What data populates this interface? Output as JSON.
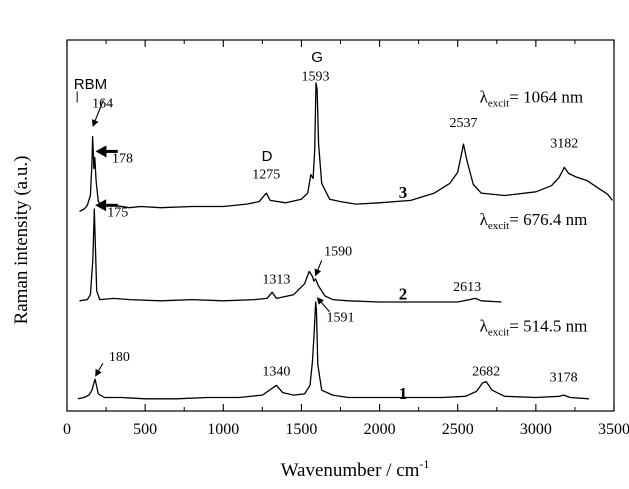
{
  "chart_data": {
    "type": "line",
    "xlabel_main": "Wavenumber / cm",
    "xlabel_sup": "-1",
    "ylabel": "Raman intensity (a.u.)",
    "xlim": [
      0,
      3500
    ],
    "xticks": [
      0,
      500,
      1000,
      1500,
      2000,
      2500,
      3000,
      3500
    ],
    "xtick_labels": [
      "0",
      "500",
      "1000",
      "1500",
      "2000",
      "2500",
      "3000",
      "3500"
    ],
    "y_ticks": "none",
    "band_labels": [
      {
        "text": "RBM",
        "x": 150,
        "y": 25.5
      },
      {
        "text": "D",
        "x": 1280,
        "y": 19.6
      },
      {
        "text": "G",
        "x": 1600,
        "y": 27.7
      }
    ],
    "series": [
      {
        "number": "3",
        "number_pos": {
          "x": 2150,
          "y": 16.6
        },
        "excitation": {
          "lambda": "λ",
          "sub": "excit",
          "value": "= 1064 nm",
          "x": 2640,
          "y": 24.4
        },
        "points": [
          [
            80,
            15.5
          ],
          [
            110,
            15.7
          ],
          [
            130,
            16.0
          ],
          [
            150,
            16.8
          ],
          [
            160,
            19.5
          ],
          [
            164,
            21.6
          ],
          [
            168,
            20.3
          ],
          [
            172,
            19.0
          ],
          [
            178,
            19.9
          ],
          [
            186,
            18.0
          ],
          [
            200,
            16.3
          ],
          [
            230,
            15.9
          ],
          [
            300,
            16.0
          ],
          [
            400,
            15.8
          ],
          [
            470,
            15.9
          ],
          [
            600,
            15.8
          ],
          [
            800,
            15.9
          ],
          [
            1000,
            15.9
          ],
          [
            1150,
            16.1
          ],
          [
            1230,
            16.3
          ],
          [
            1275,
            17.0
          ],
          [
            1300,
            16.4
          ],
          [
            1400,
            16.2
          ],
          [
            1500,
            16.5
          ],
          [
            1540,
            17.0
          ],
          [
            1560,
            18.5
          ],
          [
            1575,
            18.2
          ],
          [
            1585,
            20.5
          ],
          [
            1593,
            26.0
          ],
          [
            1600,
            25.5
          ],
          [
            1610,
            21.0
          ],
          [
            1630,
            17.8
          ],
          [
            1680,
            16.5
          ],
          [
            1750,
            16.3
          ],
          [
            1850,
            16.1
          ],
          [
            2000,
            16.2
          ],
          [
            2200,
            16.4
          ],
          [
            2350,
            17.0
          ],
          [
            2450,
            17.8
          ],
          [
            2500,
            18.7
          ],
          [
            2537,
            21.0
          ],
          [
            2560,
            19.6
          ],
          [
            2600,
            17.7
          ],
          [
            2650,
            17.0
          ],
          [
            2800,
            16.8
          ],
          [
            3000,
            17.1
          ],
          [
            3100,
            17.6
          ],
          [
            3150,
            18.3
          ],
          [
            3182,
            19.1
          ],
          [
            3210,
            18.6
          ],
          [
            3260,
            18.3
          ],
          [
            3330,
            18.0
          ],
          [
            3400,
            17.4
          ],
          [
            3460,
            16.9
          ],
          [
            3490,
            16.4
          ]
        ]
      },
      {
        "number": "2",
        "number_pos": {
          "x": 2150,
          "y": 8.3
        },
        "excitation": {
          "lambda": "λ",
          "sub": "excit",
          "value": "=  676.4 nm",
          "x": 2640,
          "y": 14.4
        },
        "points": [
          [
            80,
            8.2
          ],
          [
            130,
            8.3
          ],
          [
            150,
            8.7
          ],
          [
            165,
            11.5
          ],
          [
            172,
            14.5
          ],
          [
            175,
            15.7
          ],
          [
            180,
            13.5
          ],
          [
            190,
            9.0
          ],
          [
            210,
            8.3
          ],
          [
            300,
            8.4
          ],
          [
            400,
            8.3
          ],
          [
            600,
            8.2
          ],
          [
            800,
            8.3
          ],
          [
            1000,
            8.2
          ],
          [
            1200,
            8.3
          ],
          [
            1280,
            8.4
          ],
          [
            1313,
            8.9
          ],
          [
            1340,
            8.4
          ],
          [
            1450,
            8.7
          ],
          [
            1520,
            9.6
          ],
          [
            1550,
            10.6
          ],
          [
            1570,
            10.2
          ],
          [
            1580,
            9.8
          ],
          [
            1590,
            10.0
          ],
          [
            1610,
            9.4
          ],
          [
            1650,
            8.6
          ],
          [
            1700,
            8.3
          ],
          [
            1800,
            8.2
          ],
          [
            2000,
            8.1
          ],
          [
            2300,
            8.1
          ],
          [
            2500,
            8.1
          ],
          [
            2613,
            8.4
          ],
          [
            2650,
            8.2
          ],
          [
            2780,
            8.1
          ]
        ]
      },
      {
        "number": "1",
        "number_pos": {
          "x": 2150,
          "y": 0.2
        },
        "excitation": {
          "lambda": "λ",
          "sub": "excit",
          "value": "= 514.5 nm",
          "x": 2640,
          "y": 5.7
        },
        "points": [
          [
            70,
            0.2
          ],
          [
            110,
            0.3
          ],
          [
            140,
            0.5
          ],
          [
            160,
            0.9
          ],
          [
            170,
            1.4
          ],
          [
            180,
            1.8
          ],
          [
            190,
            1.2
          ],
          [
            200,
            0.6
          ],
          [
            240,
            0.3
          ],
          [
            350,
            0.3
          ],
          [
            500,
            0.2
          ],
          [
            700,
            0.2
          ],
          [
            900,
            0.3
          ],
          [
            1100,
            0.3
          ],
          [
            1250,
            0.5
          ],
          [
            1340,
            1.3
          ],
          [
            1380,
            0.7
          ],
          [
            1450,
            0.5
          ],
          [
            1520,
            0.6
          ],
          [
            1555,
            1.3
          ],
          [
            1570,
            3.2
          ],
          [
            1580,
            5.2
          ],
          [
            1585,
            6.5
          ],
          [
            1591,
            8.1
          ],
          [
            1596,
            7.5
          ],
          [
            1605,
            3.0
          ],
          [
            1630,
            0.9
          ],
          [
            1700,
            0.5
          ],
          [
            1800,
            0.3
          ],
          [
            2000,
            0.3
          ],
          [
            2200,
            0.3
          ],
          [
            2400,
            0.3
          ],
          [
            2550,
            0.4
          ],
          [
            2620,
            0.8
          ],
          [
            2660,
            1.5
          ],
          [
            2682,
            1.6
          ],
          [
            2720,
            0.9
          ],
          [
            2800,
            0.4
          ],
          [
            3000,
            0.3
          ],
          [
            3150,
            0.4
          ],
          [
            3178,
            0.5
          ],
          [
            3220,
            0.3
          ],
          [
            3340,
            0.2
          ]
        ]
      }
    ],
    "peak_labels": [
      {
        "text": "164",
        "x": 228,
        "y": 24.0
      },
      {
        "text": "178",
        "x": 355,
        "y": 19.5
      },
      {
        "text": "1275",
        "x": 1275,
        "y": 18.2
      },
      {
        "text": "1593",
        "x": 1590,
        "y": 26.2
      },
      {
        "text": "2537",
        "x": 2537,
        "y": 22.4
      },
      {
        "text": "3182",
        "x": 3182,
        "y": 20.7
      },
      {
        "text": "175",
        "x": 325,
        "y": 15.1
      },
      {
        "text": "1313",
        "x": 1340,
        "y": 9.6
      },
      {
        "text": "1590",
        "x": 1735,
        "y": 11.9
      },
      {
        "text": "2613",
        "x": 2560,
        "y": 9.0
      },
      {
        "text": "1591",
        "x": 1750,
        "y": 6.5
      },
      {
        "text": "180",
        "x": 335,
        "y": 3.3
      },
      {
        "text": "1340",
        "x": 1340,
        "y": 2.1
      },
      {
        "text": "2682",
        "x": 2682,
        "y": 2.1
      },
      {
        "text": "3178",
        "x": 3178,
        "y": 1.6
      }
    ],
    "arrows": [
      {
        "from": [
          233,
          24.6
        ],
        "to": [
          164,
          22.4
        ],
        "style": "thin"
      },
      {
        "from": [
          325,
          20.4
        ],
        "to": [
          182,
          20.4
        ],
        "style": "bold"
      },
      {
        "from": [
          325,
          16.0
        ],
        "to": [
          180,
          16.0
        ],
        "style": "bold"
      },
      {
        "from": [
          1630,
          11.5
        ],
        "to": [
          1588,
          10.2
        ],
        "style": "thin"
      },
      {
        "from": [
          1680,
          7.3
        ],
        "to": [
          1598,
          8.5
        ],
        "style": "thin"
      },
      {
        "from": [
          230,
          3.1
        ],
        "to": [
          180,
          2.0
        ],
        "style": "thin"
      }
    ]
  }
}
